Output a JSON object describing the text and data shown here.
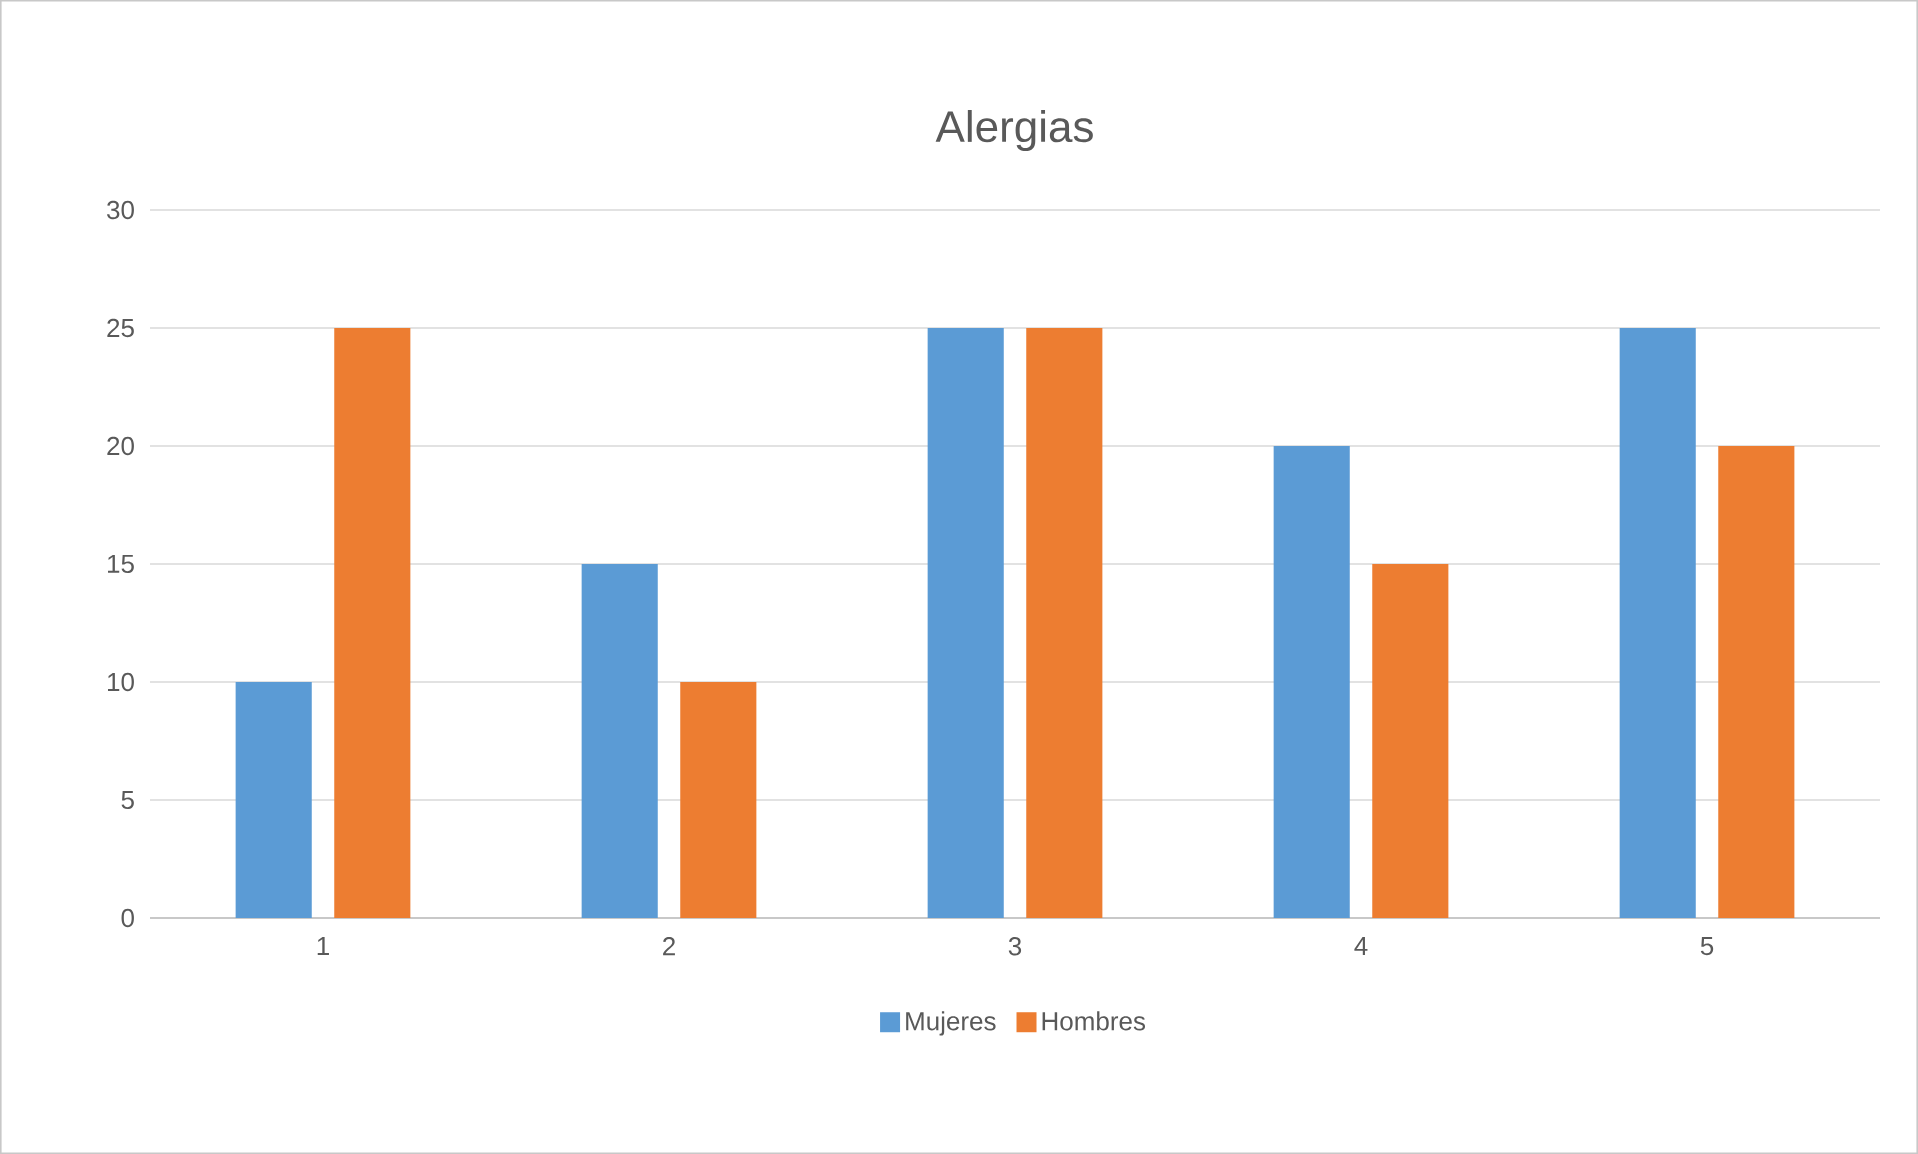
{
  "chart_data": {
    "type": "bar",
    "title": "Alergias",
    "categories": [
      "1",
      "2",
      "3",
      "4",
      "5"
    ],
    "series": [
      {
        "name": "Mujeres",
        "color": "#5b9bd5",
        "values": [
          10,
          15,
          25,
          20,
          25
        ]
      },
      {
        "name": "Hombres",
        "color": "#ed7d31",
        "values": [
          25,
          10,
          25,
          15,
          20
        ]
      }
    ],
    "ylim": [
      0,
      30
    ],
    "yticks": [
      0,
      5,
      10,
      15,
      20,
      25,
      30
    ],
    "grid": "y",
    "legend": "bottom"
  }
}
